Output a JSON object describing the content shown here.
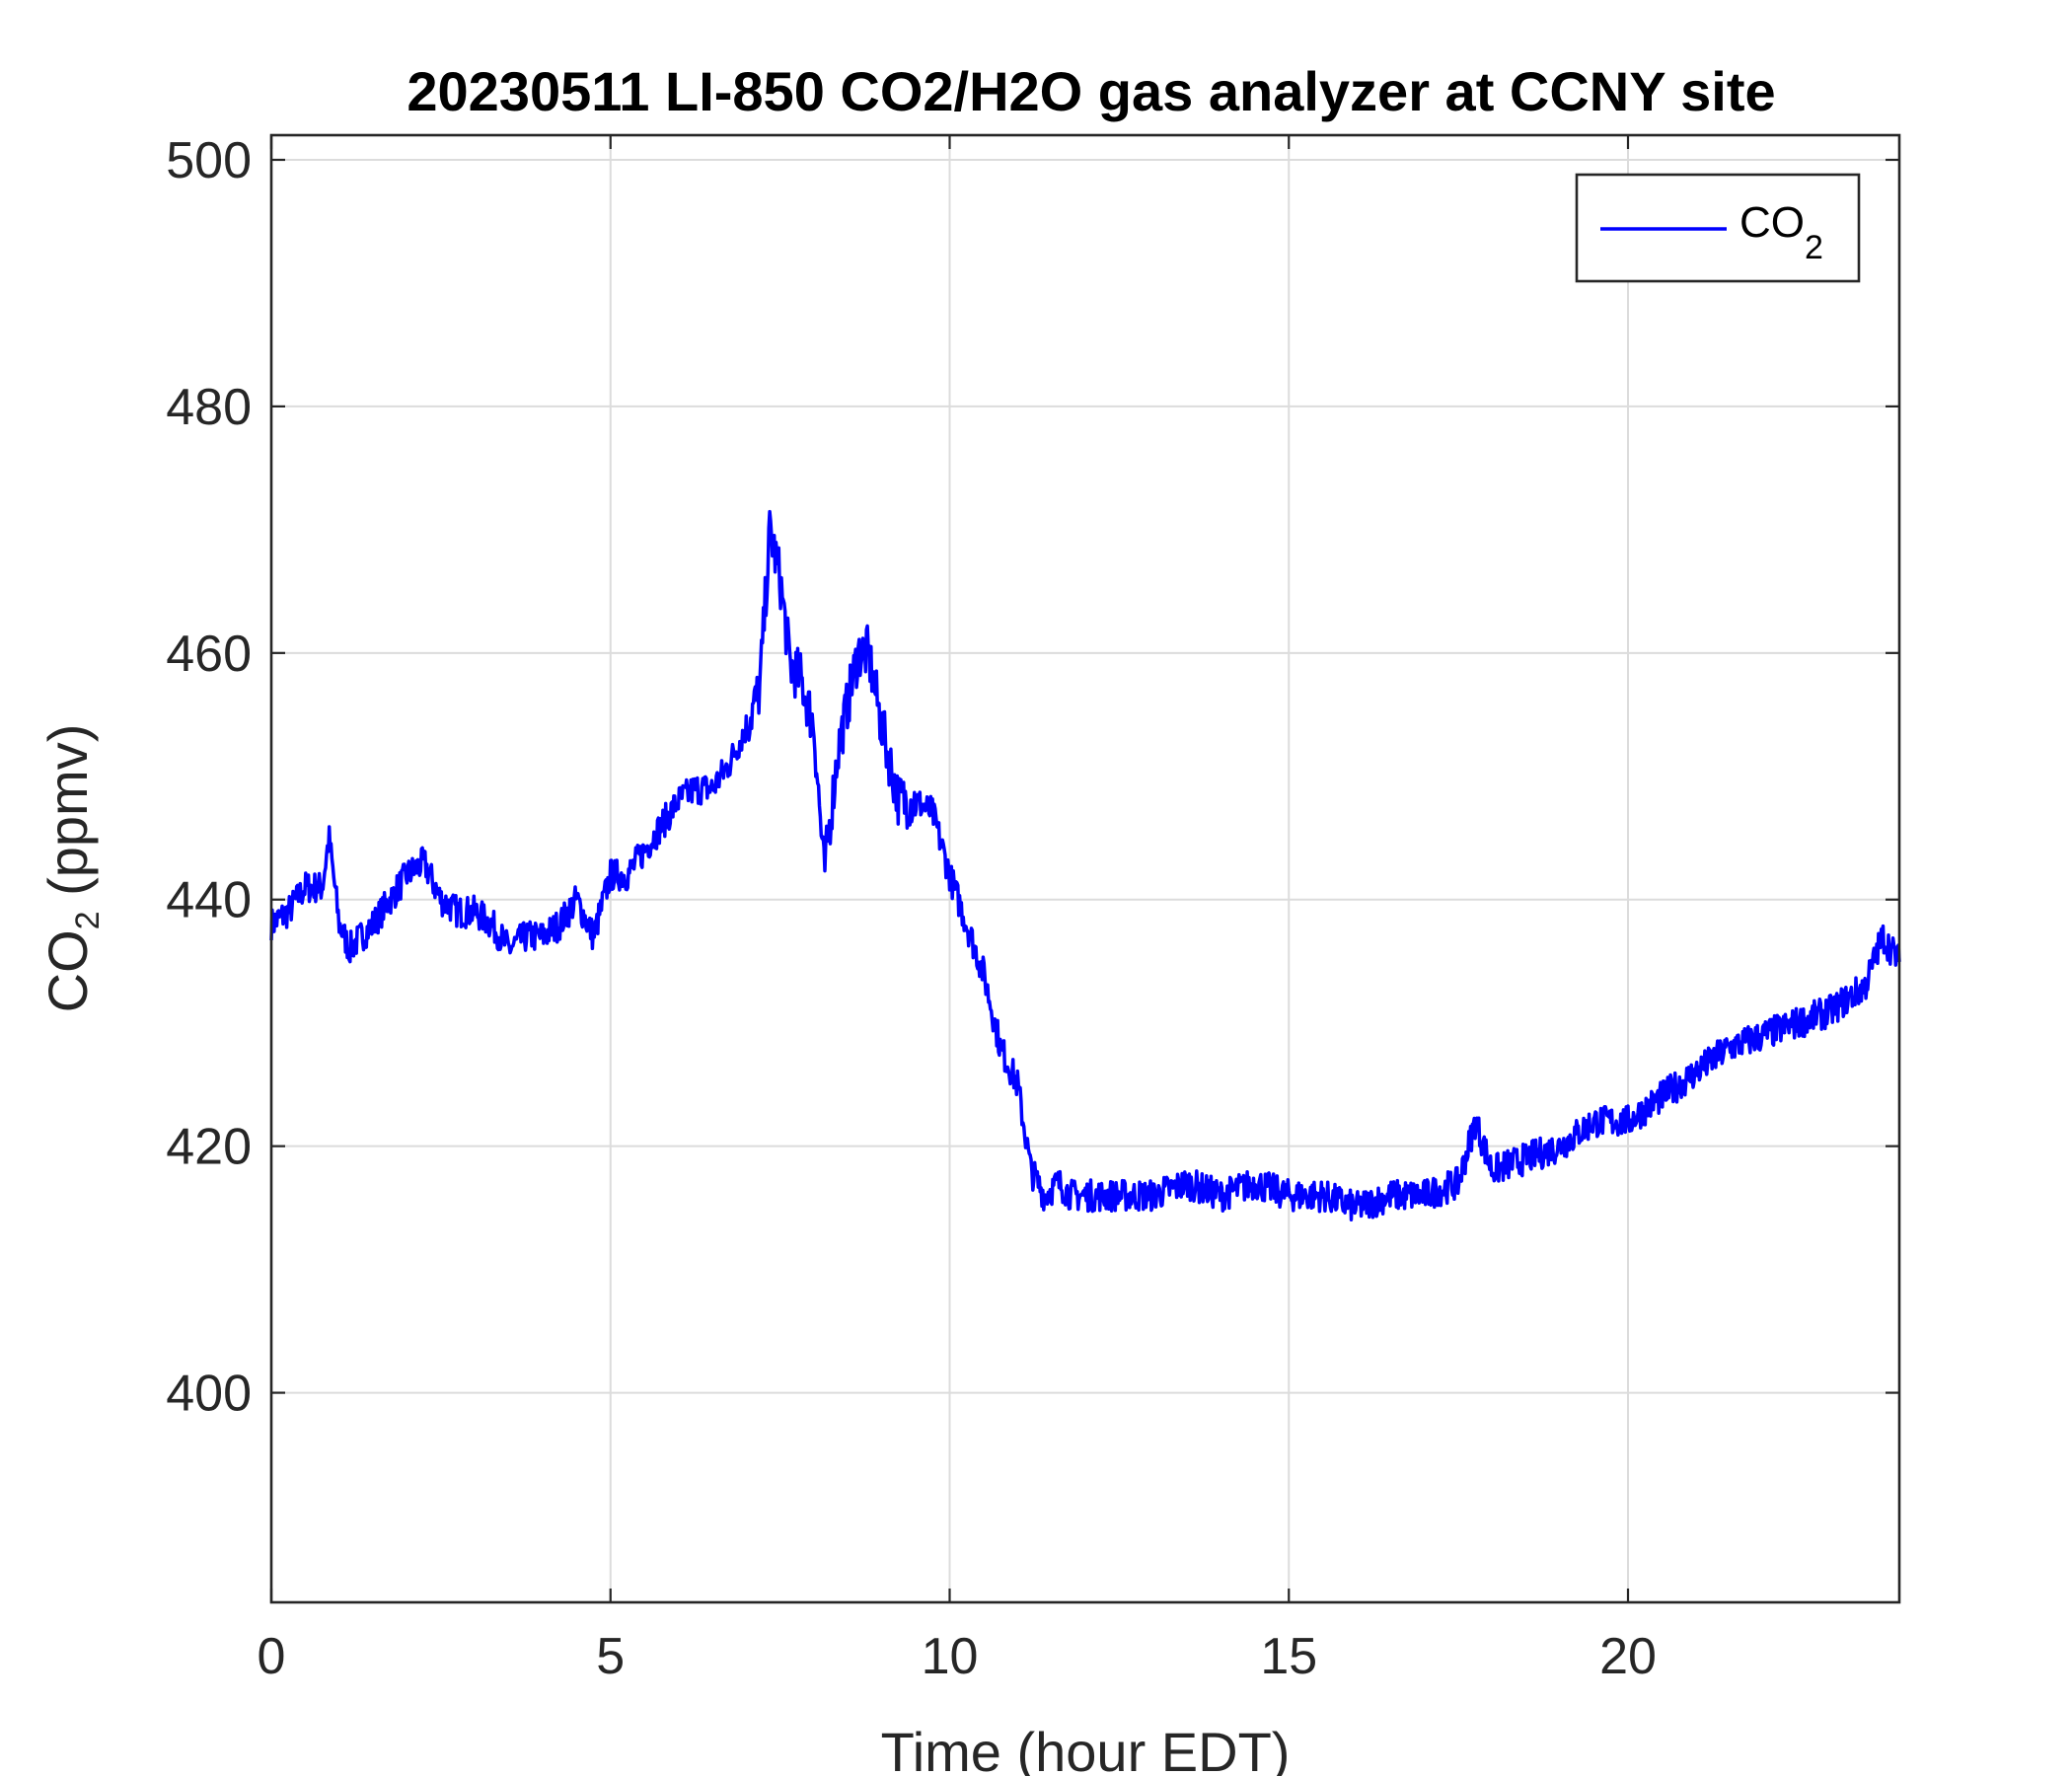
{
  "chart_data": {
    "type": "line",
    "title": "20230511 LI-850 CO2/H2O gas analyzer at CCNY site",
    "xlabel": "Time (hour EDT)",
    "ylabel": "CO",
    "ylabel_sub": "2",
    "ylabel_suffix": " (ppmv)",
    "xlim": [
      0,
      24
    ],
    "ylim": [
      383,
      502
    ],
    "xticks": [
      0,
      5,
      10,
      15,
      20
    ],
    "yticks": [
      400,
      420,
      440,
      460,
      480,
      500
    ],
    "xtick_labels": [
      "0",
      "5",
      "10",
      "15",
      "20"
    ],
    "ytick_labels": [
      "400",
      "420",
      "440",
      "460",
      "480",
      "500"
    ],
    "grid": true,
    "legend_position": "top-right",
    "legend_label": "CO",
    "legend_sub": "2",
    "series": [
      {
        "name": "CO2",
        "color": "#0000ff",
        "x": [
          0,
          0.25,
          0.5,
          0.75,
          0.85,
          1.0,
          1.15,
          1.5,
          1.75,
          2.0,
          2.25,
          2.5,
          2.75,
          3.0,
          3.25,
          3.5,
          3.75,
          4.0,
          4.25,
          4.5,
          4.75,
          5.0,
          5.25,
          5.5,
          5.75,
          6.0,
          6.25,
          6.5,
          6.75,
          7.0,
          7.2,
          7.35,
          7.5,
          7.65,
          7.8,
          8.0,
          8.15,
          8.35,
          8.5,
          8.65,
          8.8,
          9.0,
          9.25,
          9.5,
          9.75,
          10.0,
          10.25,
          10.5,
          10.75,
          11.0,
          11.2,
          11.4,
          11.6,
          11.8,
          12.0,
          12.5,
          13.0,
          13.5,
          14.0,
          14.5,
          15.0,
          15.5,
          16.0,
          16.5,
          17.0,
          17.5,
          17.75,
          18.0,
          18.5,
          19.0,
          19.5,
          20.0,
          20.5,
          21.0,
          21.5,
          22.0,
          22.5,
          23.0,
          23.5,
          23.75,
          24.0
        ],
        "y": [
          438,
          439,
          441,
          441,
          445,
          438,
          436,
          438,
          440,
          442,
          443,
          440,
          439,
          439,
          438,
          436,
          437,
          437,
          438,
          440,
          437,
          442,
          442,
          444,
          446,
          448,
          449,
          449,
          451,
          454,
          457,
          470,
          466,
          459,
          458,
          454,
          442,
          452,
          456,
          460,
          460,
          454,
          448,
          448,
          447,
          442,
          438,
          434,
          428,
          425,
          418,
          416,
          417,
          416,
          416,
          416,
          416,
          417,
          416,
          417,
          416,
          416,
          415,
          416,
          416,
          417,
          422,
          418,
          419,
          420,
          422,
          422,
          424,
          426,
          428,
          429,
          430,
          431,
          433,
          437,
          435
        ]
      }
    ]
  }
}
